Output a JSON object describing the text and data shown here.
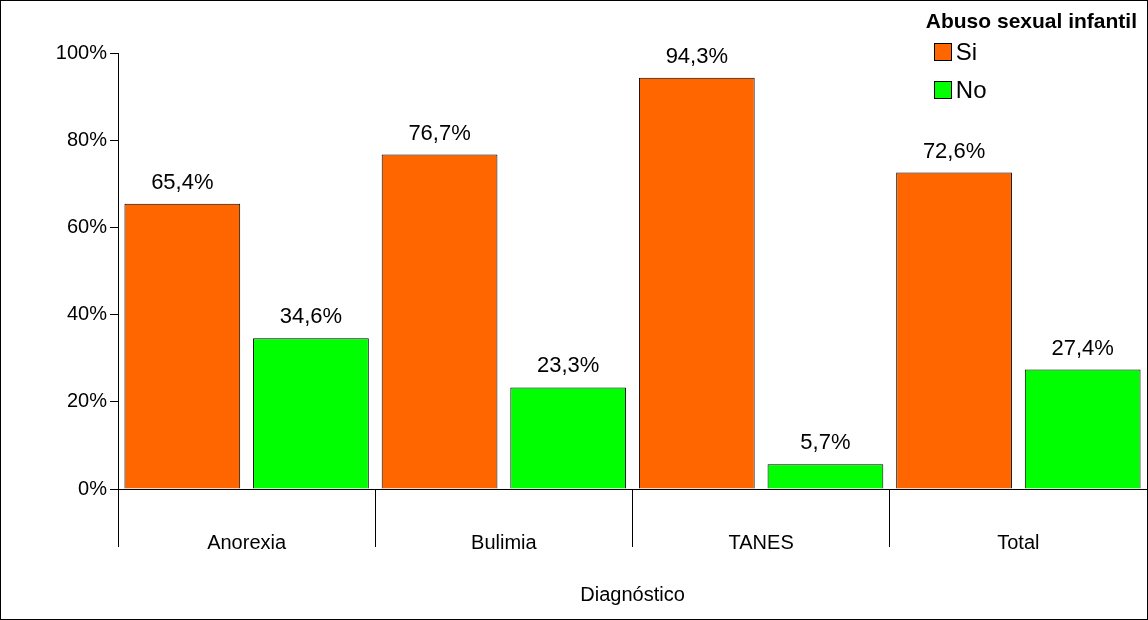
{
  "chart_data": {
    "type": "bar",
    "xlabel": "Diagnóstico",
    "legend_title": "Abuso sexual infantil",
    "categories": [
      "Anorexia",
      "Bulimia",
      "TANES",
      "Total"
    ],
    "series": [
      {
        "name": "Si",
        "color": "#ff6600",
        "values": [
          65.4,
          76.7,
          94.3,
          72.6
        ],
        "value_labels": [
          "65,4%",
          "76,7%",
          "94,3%",
          "72,6%"
        ]
      },
      {
        "name": "No",
        "color": "#00ff00",
        "values": [
          34.6,
          23.3,
          5.7,
          27.4
        ],
        "value_labels": [
          "34,6%",
          "23,3%",
          "5,7%",
          "27,4%"
        ]
      }
    ],
    "ylim": [
      0,
      100
    ],
    "yticks": [
      {
        "value": 0,
        "label": "0%"
      },
      {
        "value": 20,
        "label": "20%"
      },
      {
        "value": 40,
        "label": "40%"
      },
      {
        "value": 60,
        "label": "60%"
      },
      {
        "value": 80,
        "label": "80%"
      },
      {
        "value": 100,
        "label": "100%"
      }
    ],
    "grid": false,
    "legend": "top right"
  }
}
